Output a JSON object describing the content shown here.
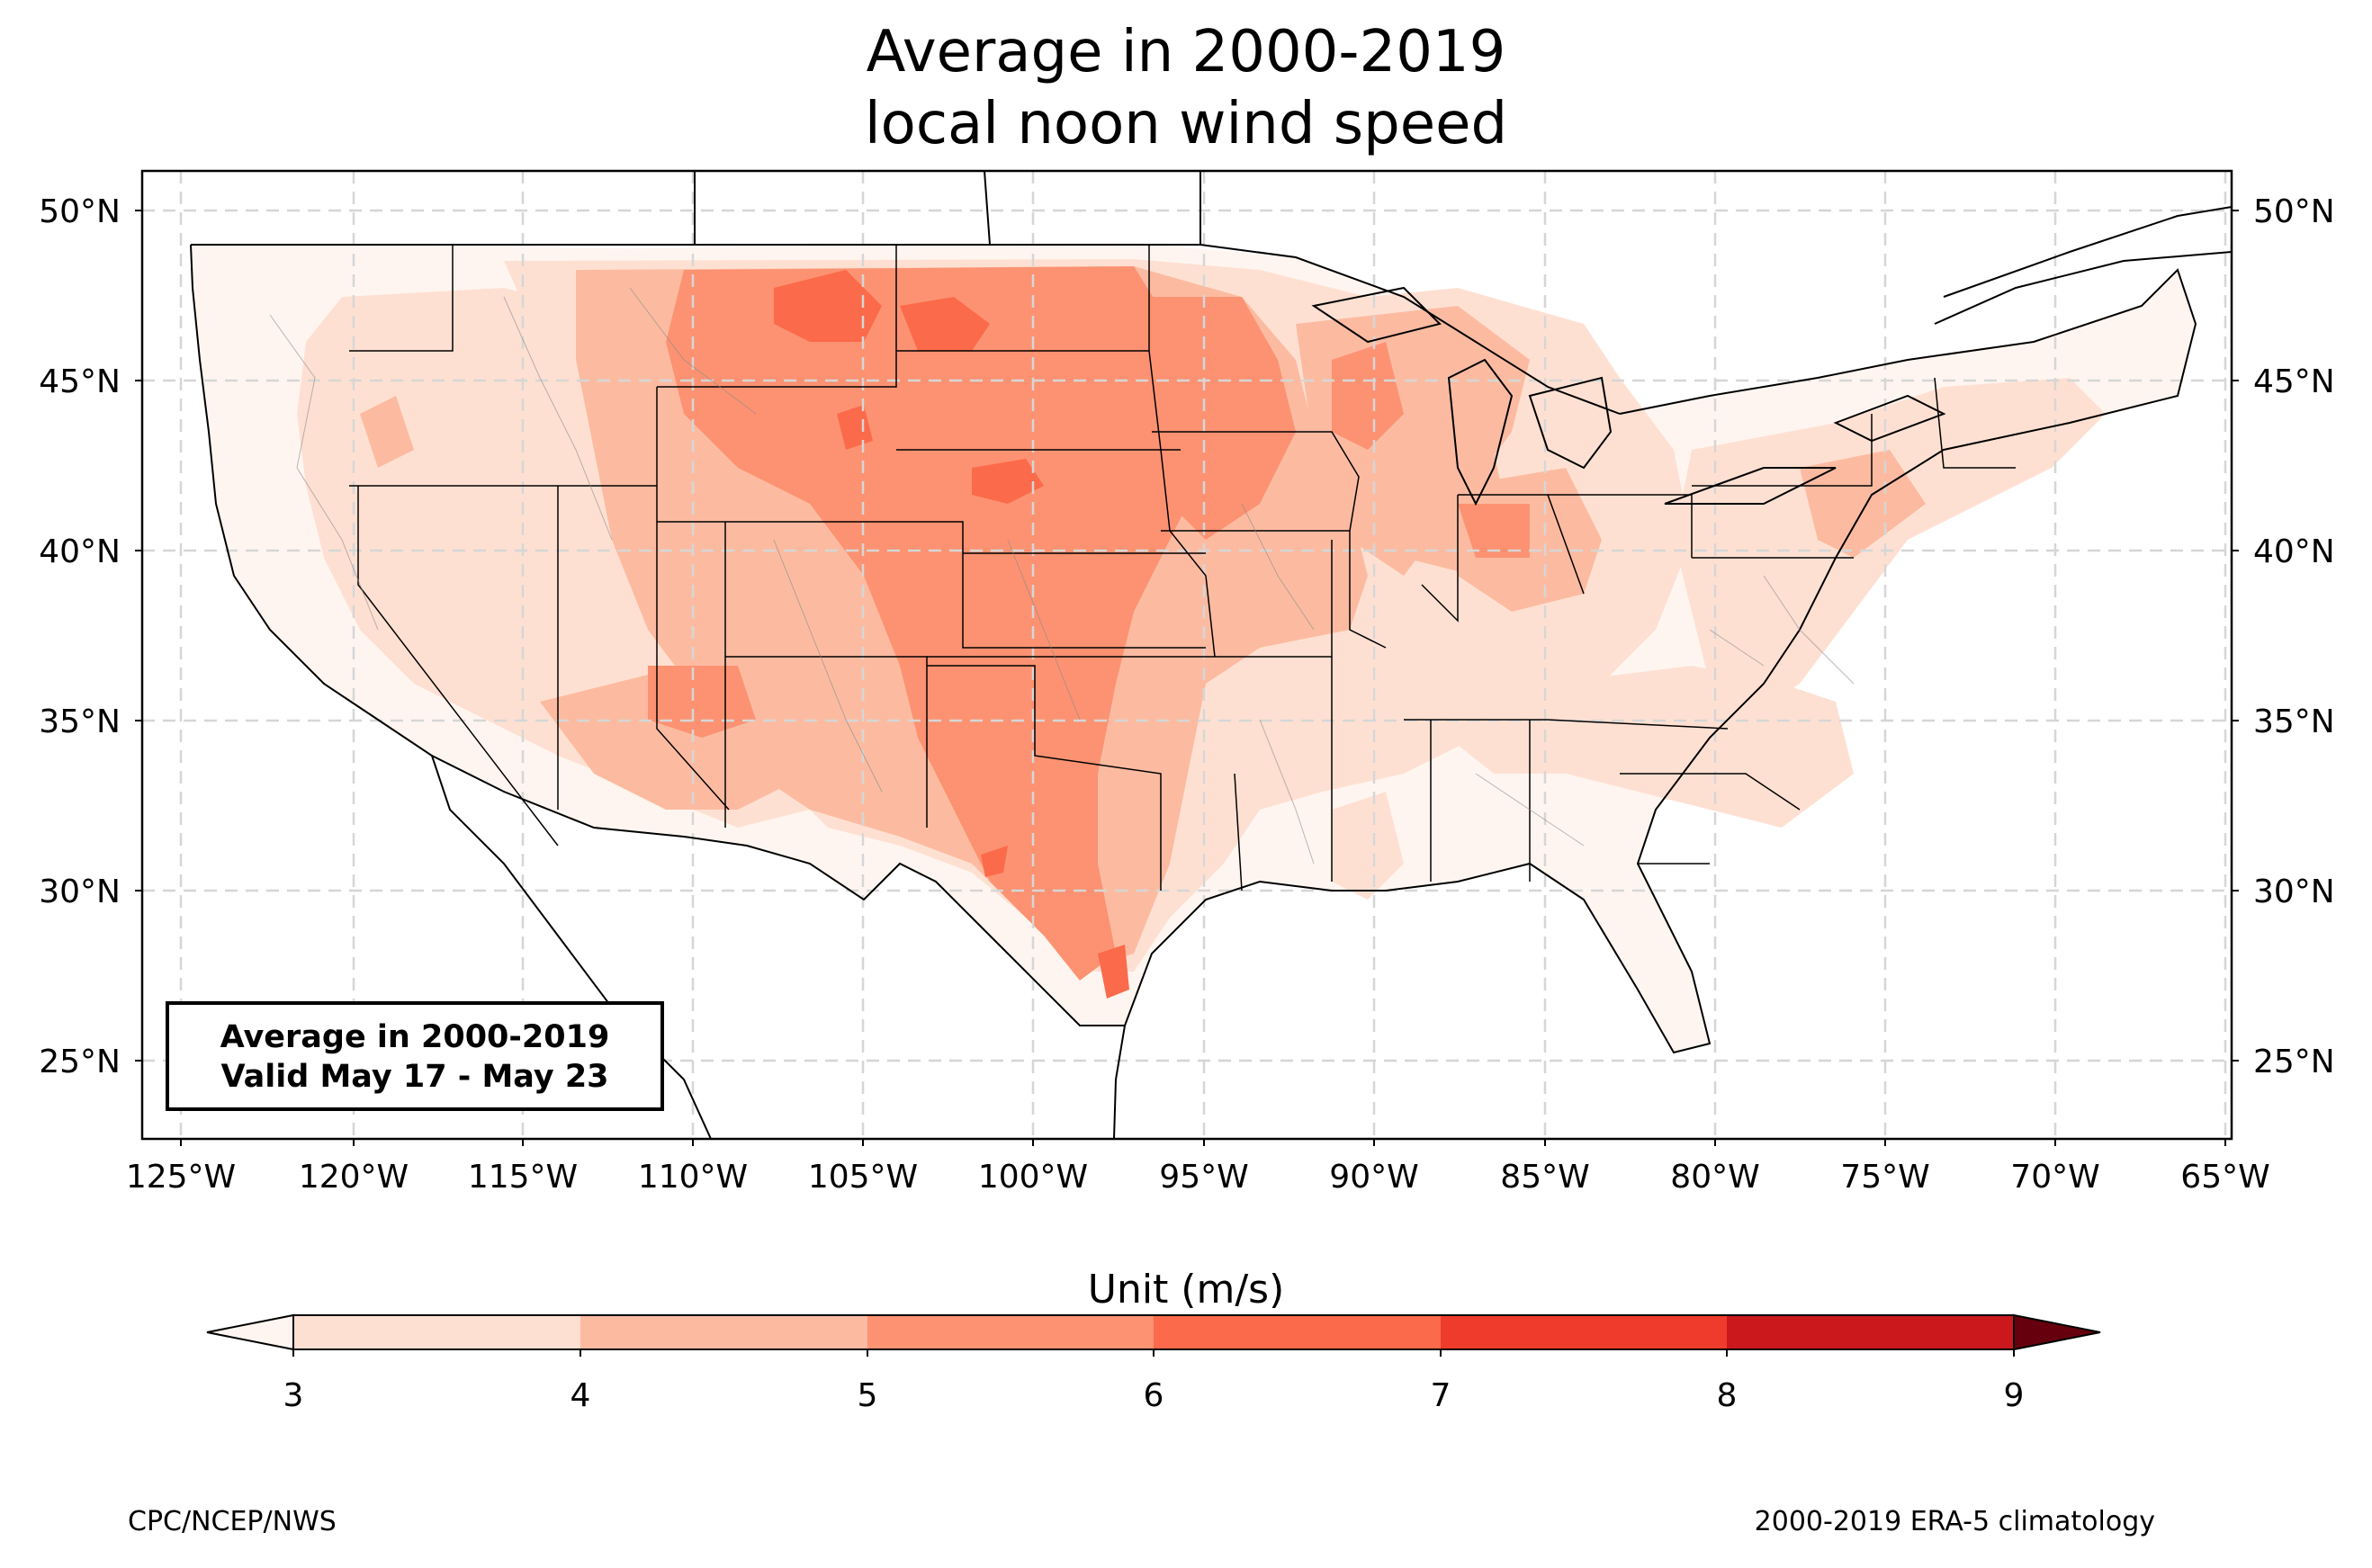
{
  "title": {
    "line1": "Average in 2000-2019",
    "line2": "local noon wind speed"
  },
  "info_box": {
    "line1": "Average in 2000-2019",
    "line2": "Valid May 17 - May 23"
  },
  "colorbar": {
    "label": "Unit (m/s)",
    "ticks": [
      "3",
      "4",
      "5",
      "6",
      "7",
      "8",
      "9"
    ],
    "colors": [
      "#fee0d2",
      "#fcbba1",
      "#fc9272",
      "#fb6a4a",
      "#ef3b2c",
      "#cb181d",
      "#a50f15"
    ],
    "under_color": "#fff5f0",
    "over_color": "#67000d"
  },
  "axes": {
    "lon_labels": [
      "125°W",
      "120°W",
      "115°W",
      "110°W",
      "105°W",
      "100°W",
      "95°W",
      "90°W",
      "85°W",
      "80°W",
      "75°W",
      "70°W",
      "65°W"
    ],
    "lat_labels": [
      "50°N",
      "45°N",
      "40°N",
      "35°N",
      "30°N",
      "25°N"
    ]
  },
  "footer": {
    "left": "CPC/NCEP/NWS",
    "right": "2000-2019 ERA-5 climatology"
  }
}
